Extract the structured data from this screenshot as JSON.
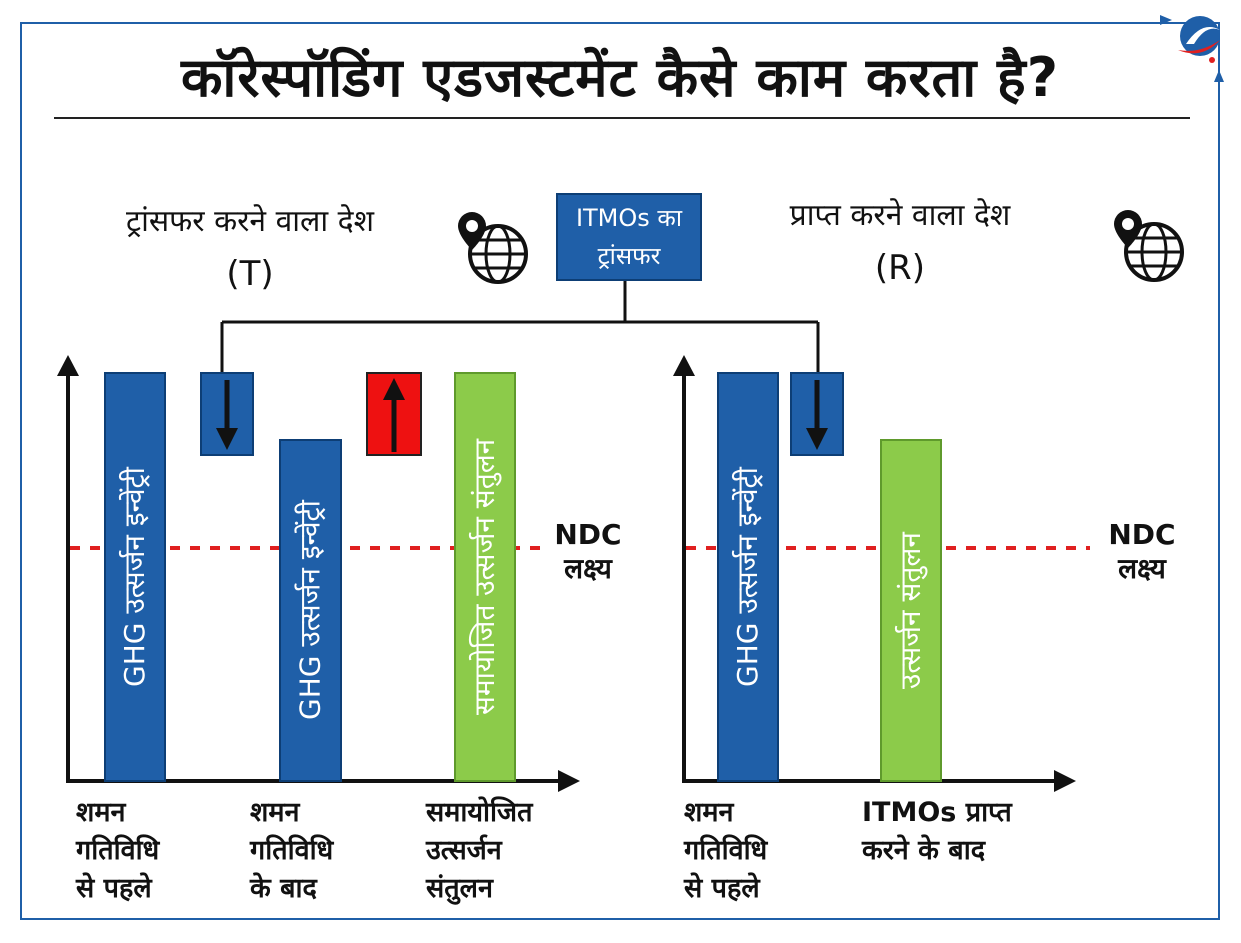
{
  "title": "कॉरेस्पॉडिंग एडजस्टमेंट कैसे काम करता है?",
  "transfer_box": {
    "line1": "ITMOs का",
    "line2": "ट्रांसफर"
  },
  "left": {
    "country": "ट्रांसफर करने वाला देश",
    "code": "(T)",
    "bar1_label": "GHG उत्सर्जन इन्वेंट्री",
    "bar2_label": "GHG उत्सर्जन इन्वेंट्री",
    "bar3_label": "समायोजित उत्सर्जन संतुलन",
    "ndc_line1": "NDC",
    "ndc_line2": "लक्ष्य",
    "x1": [
      "शमन",
      "गतिविधि",
      "से पहले"
    ],
    "x2": [
      "शमन",
      "गतिविधि",
      "के बाद"
    ],
    "x3": [
      "समायोजित",
      "उत्सर्जन",
      "संतुलन"
    ]
  },
  "right": {
    "country": "प्राप्त करने वाला देश",
    "code": "(R)",
    "bar1_label": "GHG उत्सर्जन इन्वेंट्री",
    "bar2_label": "उत्सर्जन संतुलन",
    "ndc_line1": "NDC",
    "ndc_line2": "लक्ष्य",
    "x1": [
      "शमन",
      "गतिविधि",
      "से पहले"
    ],
    "x2": [
      "ITMOs प्राप्त",
      "करने के बाद"
    ]
  },
  "colors": {
    "blue": "#1f5fa8",
    "green": "#8ccb4a",
    "red": "#ee1111",
    "ndc": "#e02020",
    "frame": "#1f5fa8"
  },
  "icons": [
    "globe-pin-icon",
    "arrow-down-icon",
    "arrow-up-icon",
    "logo-icon"
  ]
}
